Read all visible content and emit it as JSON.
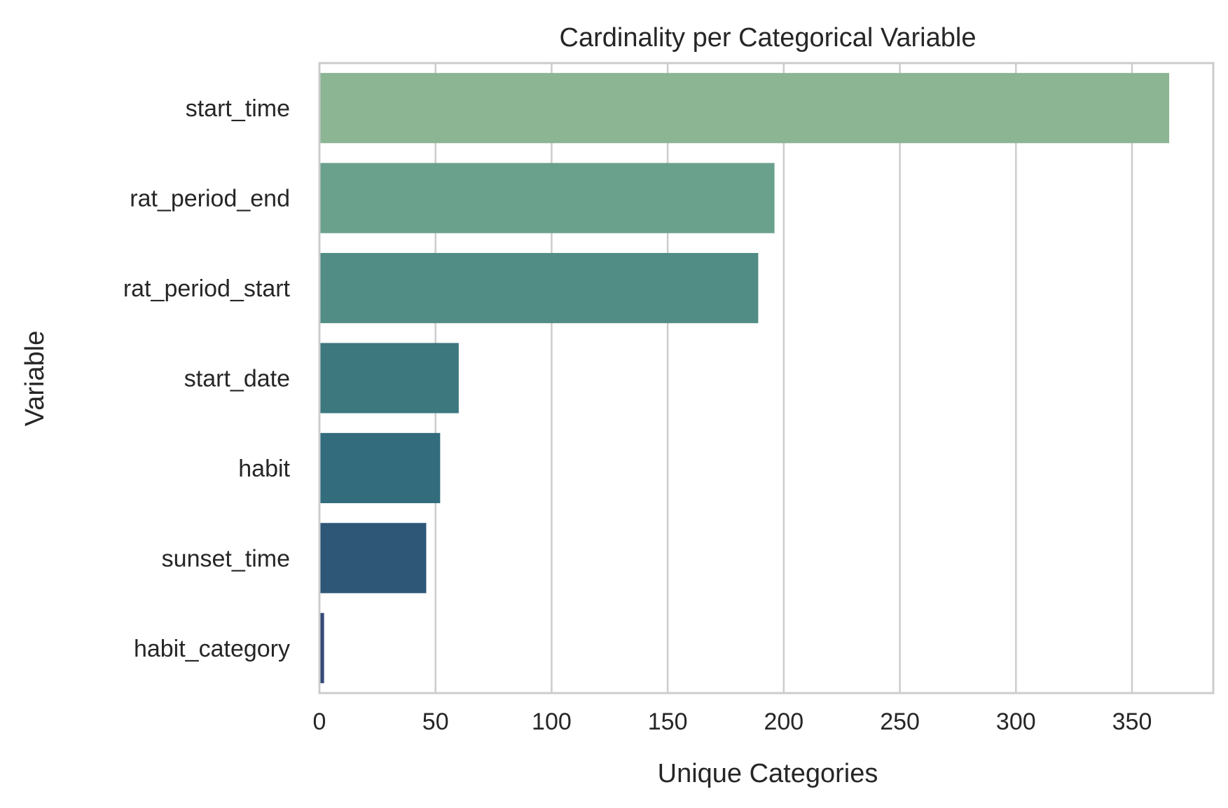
{
  "chart_data": {
    "type": "bar",
    "orientation": "horizontal",
    "title": "Cardinality per Categorical Variable",
    "xlabel": "Unique Categories",
    "ylabel": "Variable",
    "categories": [
      "start_time",
      "rat_period_end",
      "rat_period_start",
      "start_date",
      "habit",
      "sunset_time",
      "habit_category"
    ],
    "values": [
      366,
      196,
      189,
      60,
      52,
      46,
      2
    ],
    "colors": [
      "#8bb593",
      "#6aa18d",
      "#528d85",
      "#3d787f",
      "#326c7d",
      "#2d5677",
      "#354a76"
    ],
    "xlim": [
      0,
      385
    ],
    "xticks": [
      0,
      50,
      100,
      150,
      200,
      250,
      300,
      350
    ],
    "grid": true,
    "grid_axis": "x"
  }
}
